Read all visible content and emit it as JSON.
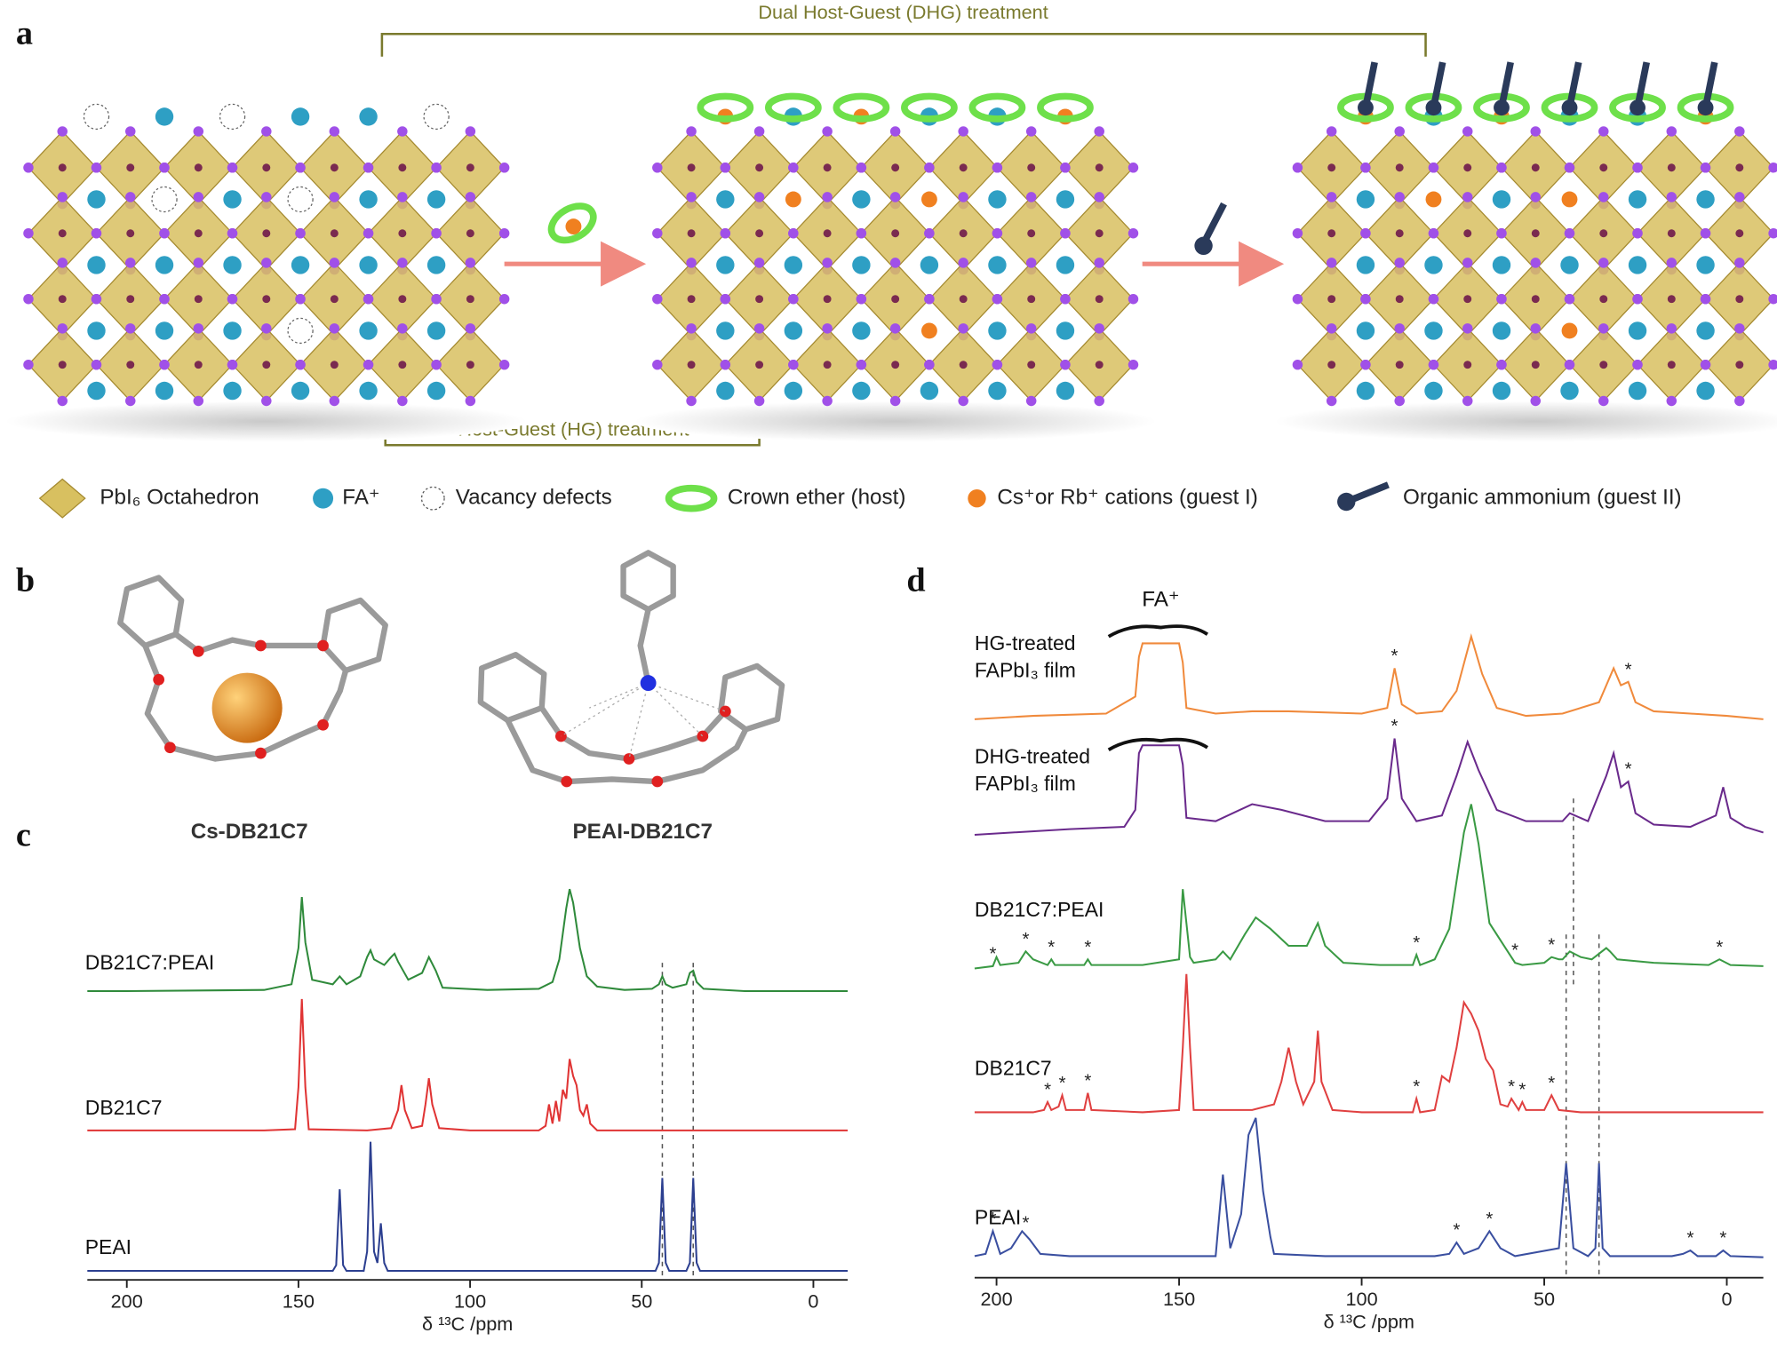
{
  "figure": {
    "panel_a": {
      "label": "a",
      "dhg_label": "Dual Host-Guest (DHG) treatment",
      "hg_label": "Host-Guest (HG) treatment",
      "legend": [
        "PbI₆ Octahedron",
        "FA⁺",
        "Vacancy defects",
        "Crown ether (host)",
        "Cs⁺or Rb⁺ cations (guest I)",
        "Organic ammonium (guest II)"
      ]
    },
    "panel_b": {
      "label": "b",
      "captions": [
        "Cs-DB21C7",
        "PEAI-DB21C7"
      ]
    }
  },
  "chart_data": [
    {
      "type": "line",
      "panel_label": "c",
      "x_label": "δ ¹³C /ppm",
      "xlim": [
        211.5,
        -10
      ],
      "xticks": [
        200,
        150,
        100,
        50,
        0
      ],
      "ylim": [
        0,
        150
      ],
      "reference_lines": [
        44,
        35
      ],
      "series": [
        {
          "name": "DB21C7:PEAI",
          "color": "#2f8a3b",
          "x": [
            211.5,
            200,
            160,
            152,
            150,
            149,
            148,
            146,
            140,
            138,
            136,
            132,
            130,
            129,
            128,
            125,
            123,
            122,
            121,
            118,
            114,
            112,
            110,
            108,
            95,
            80,
            76,
            74,
            72,
            71,
            70,
            68,
            66,
            63,
            55,
            47,
            45,
            44,
            43,
            41,
            37,
            36,
            35,
            34,
            32,
            20,
            0,
            -10
          ],
          "values": [
            2,
            2,
            3,
            8,
            40,
            85,
            45,
            12,
            8,
            15,
            8,
            15,
            32,
            38,
            30,
            25,
            32,
            35,
            28,
            12,
            18,
            32,
            20,
            5,
            3,
            4,
            10,
            30,
            75,
            92,
            80,
            40,
            15,
            6,
            3,
            4,
            8,
            15,
            8,
            5,
            8,
            18,
            20,
            10,
            4,
            2,
            2,
            2
          ]
        },
        {
          "name": "DB21C7",
          "color": "#e03434",
          "x": [
            211.5,
            160,
            151,
            150,
            149,
            148,
            147,
            130,
            123,
            121,
            120,
            119,
            117,
            114,
            113,
            112,
            111,
            109,
            100,
            80,
            78,
            77,
            76,
            75,
            74,
            73,
            72,
            71,
            70,
            69,
            68,
            67,
            66,
            65,
            63,
            50,
            0,
            -10
          ],
          "values": [
            2,
            2,
            3,
            40,
            118,
            40,
            3,
            2,
            4,
            20,
            42,
            20,
            4,
            6,
            25,
            48,
            25,
            4,
            2,
            2,
            6,
            25,
            8,
            28,
            10,
            38,
            30,
            65,
            50,
            42,
            20,
            15,
            25,
            8,
            2,
            2,
            2,
            2
          ]
        },
        {
          "name": "PEAI",
          "color": "#2c3f90",
          "x": [
            211.5,
            140,
            139,
            138,
            137,
            136,
            131,
            130,
            129,
            128,
            127,
            126,
            125,
            124,
            100,
            46,
            45,
            44,
            43,
            42,
            37,
            36,
            35,
            34,
            33,
            0,
            -10
          ],
          "values": [
            3,
            3,
            8,
            75,
            8,
            3,
            3,
            20,
            117,
            20,
            10,
            45,
            10,
            3,
            3,
            3,
            10,
            85,
            10,
            3,
            3,
            10,
            85,
            10,
            3,
            3,
            3
          ]
        }
      ]
    },
    {
      "type": "line",
      "panel_label": "d",
      "x_label": "δ ¹³C /ppm",
      "xlim": [
        206,
        -10
      ],
      "xticks": [
        200,
        150,
        100,
        50,
        0
      ],
      "ylim": [
        0,
        150
      ],
      "reference_lines": [
        42,
        44,
        35
      ],
      "annotation": {
        "text": "FA⁺",
        "x": [
          160,
          150
        ]
      },
      "series": [
        {
          "name": "HG-treated FAPbI₃ film",
          "color": "#f08a3c",
          "marker_label": "*",
          "markers": [
            91,
            27
          ],
          "x": [
            206,
            190,
            170,
            162,
            161,
            160,
            150,
            149,
            148,
            140,
            130,
            120,
            100,
            93,
            91,
            89,
            85,
            78,
            74,
            70,
            67,
            63,
            55,
            45,
            35,
            31,
            29,
            27,
            25,
            20,
            10,
            0,
            -10
          ],
          "values": [
            5,
            8,
            10,
            25,
            60,
            72,
            72,
            55,
            15,
            10,
            12,
            12,
            10,
            15,
            50,
            18,
            10,
            12,
            30,
            78,
            45,
            15,
            8,
            10,
            20,
            50,
            35,
            38,
            20,
            12,
            10,
            8,
            5
          ]
        },
        {
          "name": "DHG-treated FAPbI₃ film",
          "color": "#6a2a8c",
          "marker_label": "*",
          "markers": [
            91,
            27
          ],
          "x": [
            206,
            180,
            165,
            162,
            161,
            160,
            150,
            149,
            148,
            140,
            130,
            122,
            110,
            98,
            93,
            91,
            89,
            85,
            78,
            74,
            71,
            68,
            63,
            55,
            45,
            43,
            38,
            33,
            31,
            29,
            27,
            25,
            20,
            10,
            3,
            1,
            -1,
            -5,
            -10
          ],
          "values": [
            3,
            8,
            10,
            25,
            75,
            82,
            82,
            65,
            18,
            15,
            30,
            25,
            15,
            15,
            35,
            88,
            35,
            15,
            20,
            55,
            85,
            60,
            25,
            15,
            15,
            22,
            15,
            55,
            75,
            45,
            50,
            22,
            12,
            10,
            20,
            45,
            18,
            10,
            5
          ]
        },
        {
          "name": "DB21C7:PEAI",
          "color": "#3a9a44",
          "marker_label": "*",
          "markers": [
            201,
            192,
            185,
            175,
            85,
            58,
            48,
            2
          ],
          "x": [
            206,
            201,
            200,
            199,
            194,
            192,
            190,
            186,
            185,
            184,
            176,
            175,
            174,
            160,
            150,
            149,
            148,
            147,
            146,
            140,
            138,
            136,
            132,
            129,
            125,
            120,
            115,
            112,
            110,
            105,
            95,
            86,
            85,
            84,
            80,
            76,
            72,
            70,
            68,
            65,
            60,
            58,
            56,
            50,
            48,
            46,
            45,
            43,
            40,
            37,
            33,
            32,
            30,
            20,
            5,
            2,
            -1,
            -10
          ],
          "values": [
            0,
            2,
            10,
            3,
            5,
            15,
            8,
            3,
            8,
            3,
            3,
            8,
            3,
            3,
            8,
            70,
            40,
            10,
            5,
            8,
            15,
            8,
            30,
            45,
            35,
            20,
            20,
            40,
            20,
            5,
            3,
            3,
            12,
            3,
            8,
            35,
            120,
            145,
            110,
            40,
            15,
            5,
            3,
            5,
            10,
            8,
            8,
            15,
            10,
            8,
            18,
            15,
            8,
            5,
            3,
            8,
            3,
            2
          ]
        },
        {
          "name": "DB21C7",
          "color": "#e04040",
          "marker_label": "*",
          "markers": [
            186,
            182,
            175,
            85,
            59,
            56,
            48
          ],
          "x": [
            206,
            190,
            187,
            186,
            185,
            183,
            182,
            181,
            176,
            175,
            174,
            160,
            150,
            149,
            148,
            147,
            146,
            130,
            124,
            122,
            120,
            118,
            116,
            113,
            112,
            111,
            108,
            100,
            86,
            85,
            84,
            80,
            78,
            76,
            74,
            72,
            70,
            68,
            66,
            64,
            62,
            60,
            59,
            57,
            56,
            55,
            50,
            48,
            46,
            40,
            20,
            -10
          ],
          "values": [
            3,
            3,
            5,
            12,
            5,
            8,
            18,
            5,
            5,
            20,
            5,
            3,
            5,
            60,
            125,
            60,
            5,
            5,
            10,
            30,
            60,
            30,
            10,
            30,
            75,
            30,
            5,
            3,
            3,
            15,
            3,
            5,
            35,
            30,
            60,
            100,
            90,
            75,
            50,
            40,
            10,
            8,
            15,
            5,
            12,
            5,
            5,
            18,
            5,
            3,
            3,
            3
          ]
        },
        {
          "name": "PEAI",
          "color": "#3a4fa0",
          "marker_label": "*",
          "markers": [
            201,
            192,
            74,
            65,
            10,
            1
          ],
          "x": [
            206,
            203,
            201,
            199,
            196,
            193,
            191,
            188,
            180,
            140,
            138,
            136,
            133,
            131,
            129,
            127,
            125,
            124,
            110,
            80,
            76,
            74,
            72,
            68,
            65,
            62,
            58,
            46,
            44,
            42,
            38,
            36,
            35,
            34,
            32,
            15,
            12,
            10,
            8,
            3,
            1,
            -1,
            -10
          ],
          "values": [
            3,
            5,
            25,
            5,
            10,
            25,
            18,
            5,
            3,
            3,
            75,
            10,
            40,
            110,
            125,
            60,
            20,
            5,
            3,
            3,
            5,
            15,
            5,
            10,
            25,
            10,
            3,
            10,
            85,
            10,
            3,
            10,
            85,
            10,
            3,
            3,
            5,
            8,
            3,
            3,
            8,
            3,
            2
          ]
        }
      ]
    }
  ]
}
